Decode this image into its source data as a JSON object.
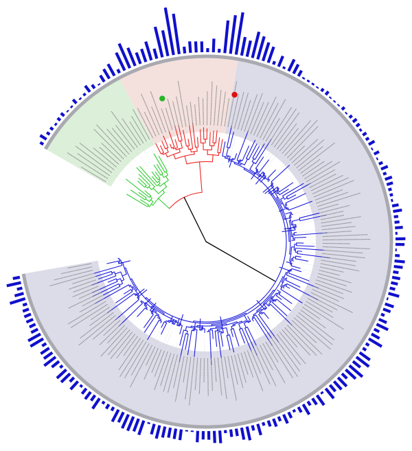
{
  "figure": {
    "kind": "circular-phylogenetic-tree",
    "leaf_labels_legible": false,
    "root_angle_deg": -90
  },
  "colors": {
    "root_branch": "#000000",
    "clade_green": "#33cc33",
    "clade_red": "#ee2222",
    "clade_blue": "#1a1adb",
    "bar": "#1010cc",
    "sector_green": "#dcefd9",
    "sector_red": "#f4e1de",
    "sector_blue": "#dcdbe8",
    "ring": "#a9a9b0",
    "guide_line": "#c4c4c4",
    "marker_green": "#29b529",
    "marker_red": "#dd1111"
  },
  "clades": [
    {
      "id": "green",
      "color_key": "clade_green",
      "start_deg": -150,
      "end_deg": -118,
      "leaves": 18
    },
    {
      "id": "red",
      "color_key": "clade_red",
      "start_deg": -118,
      "end_deg": -80,
      "leaves": 22
    },
    {
      "id": "blue",
      "color_key": "clade_blue",
      "start_deg": -80,
      "end_deg": 170,
      "leaves": 150
    }
  ],
  "markers": [
    {
      "id": "green-marker",
      "color_key": "marker_green",
      "angle_deg": -107
    },
    {
      "id": "red-marker",
      "color_key": "marker_red",
      "angle_deg": -79
    }
  ],
  "bar_profile": [
    {
      "angle_deg": -150,
      "value": 0.15
    },
    {
      "angle_deg": -140,
      "value": 0.12
    },
    {
      "angle_deg": -125,
      "value": 0.14
    },
    {
      "angle_deg": -112,
      "value": 0.6
    },
    {
      "angle_deg": -105,
      "value": 0.3
    },
    {
      "angle_deg": -100,
      "value": 1.0
    },
    {
      "angle_deg": -95,
      "value": 0.25
    },
    {
      "angle_deg": -90,
      "value": 0.55
    },
    {
      "angle_deg": -80,
      "value": 0.75
    },
    {
      "angle_deg": -70,
      "value": 0.3
    },
    {
      "angle_deg": -55,
      "value": 0.1
    },
    {
      "angle_deg": -30,
      "value": 0.12
    },
    {
      "angle_deg": 0,
      "value": 0.18
    },
    {
      "angle_deg": 20,
      "value": 0.2
    },
    {
      "angle_deg": 40,
      "value": 0.3
    },
    {
      "angle_deg": 55,
      "value": 0.2
    },
    {
      "angle_deg": 75,
      "value": 0.25
    },
    {
      "angle_deg": 95,
      "value": 0.2
    },
    {
      "angle_deg": 120,
      "value": 0.3
    },
    {
      "angle_deg": 150,
      "value": 0.35
    },
    {
      "angle_deg": 170,
      "value": 0.4
    }
  ]
}
